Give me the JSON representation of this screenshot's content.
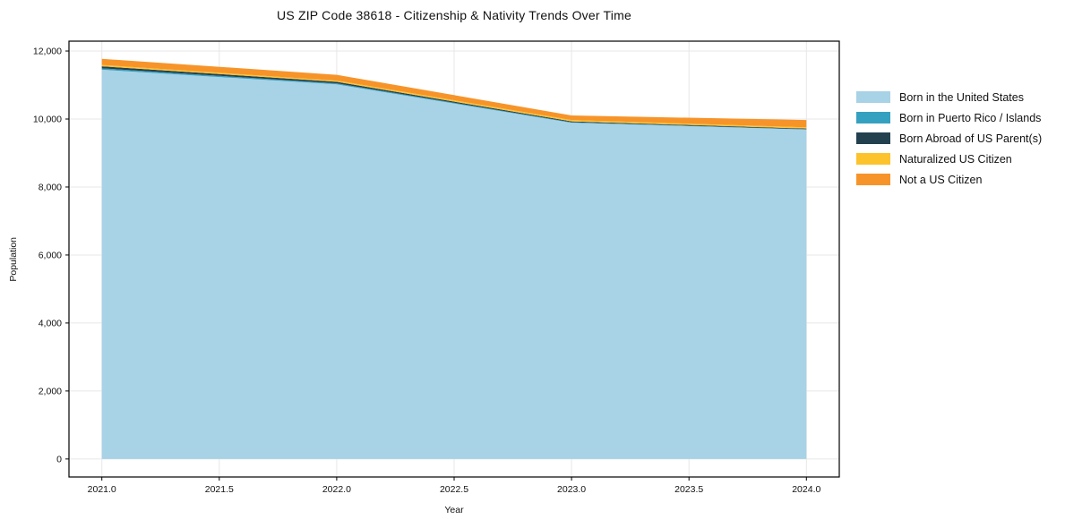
{
  "title": "US ZIP Code 38618 - Citizenship & Nativity Trends Over Time",
  "chart_data": {
    "type": "area",
    "stacked": true,
    "title": "US ZIP Code 38618 - Citizenship & Nativity Trends Over Time",
    "xlabel": "Year",
    "ylabel": "Population",
    "x": [
      2021,
      2022,
      2023,
      2024
    ],
    "series": [
      {
        "name": "Born in the United States",
        "color": "#a8d2e6",
        "values": [
          11450,
          11020,
          9890,
          9690
        ]
      },
      {
        "name": "Born in Puerto Rico / Islands",
        "color": "#35a1c0",
        "values": [
          40,
          30,
          15,
          10
        ]
      },
      {
        "name": "Born Abroad of US Parent(s)",
        "color": "#23404f",
        "values": [
          60,
          45,
          25,
          20
        ]
      },
      {
        "name": "Naturalized US Citizen",
        "color": "#fcc32d",
        "values": [
          40,
          35,
          40,
          35
        ]
      },
      {
        "name": "Not a US Citizen",
        "color": "#f79429",
        "values": [
          180,
          170,
          135,
          215
        ]
      }
    ],
    "totals": [
      11770,
      11300,
      10105,
      9970
    ],
    "xlim": [
      2020.86,
      2024.14
    ],
    "ylim": [
      -530,
      12290
    ],
    "xticks": {
      "values": [
        2021,
        2021.5,
        2022,
        2022.5,
        2023,
        2023.5,
        2024
      ],
      "labels": [
        "2021.0",
        "2021.5",
        "2022.0",
        "2022.5",
        "2023.0",
        "2023.5",
        "2024.0"
      ]
    },
    "yticks": {
      "values": [
        0,
        2000,
        4000,
        6000,
        8000,
        10000,
        12000
      ],
      "labels": [
        "0",
        "2,000",
        "4,000",
        "6,000",
        "8,000",
        "10,000",
        "12,000"
      ]
    },
    "grid": true,
    "legend_position": "right-outside"
  },
  "colors": {
    "background": "#ffffff",
    "grid": "#e7e7e7",
    "spine": "#000000",
    "text": "#111111"
  }
}
